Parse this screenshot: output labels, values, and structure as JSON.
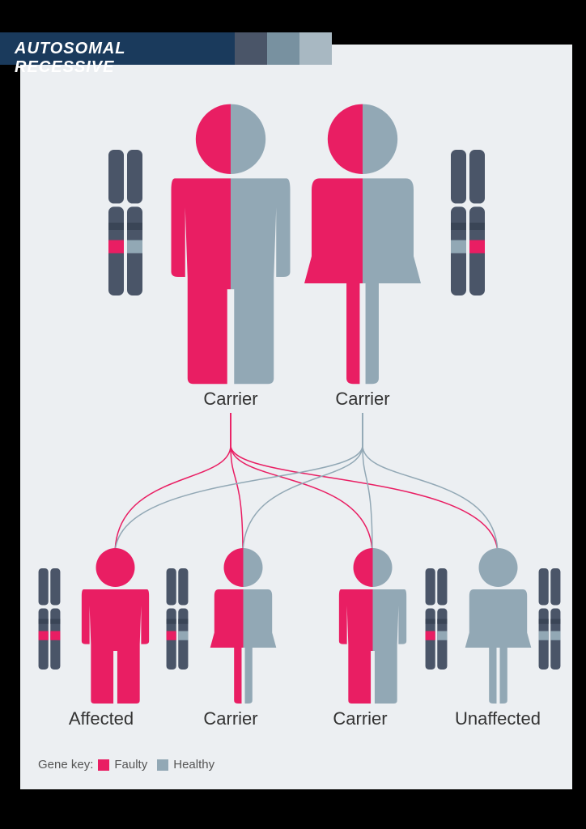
{
  "title": "AUTOSOMAL RECESSIVE",
  "colors": {
    "faulty": "#e91e63",
    "healthy": "#92a8b5",
    "chromosome": "#4a5568",
    "chromosome_band_dark": "#3a4556",
    "panel_bg": "#eceff2",
    "title_bg": "#1a3a5c",
    "block1": "#4a5568",
    "block2": "#7891a0",
    "block3": "#a8b8c2",
    "text": "#333333",
    "legend_text": "#555555"
  },
  "parents": [
    {
      "gender": "male",
      "left_color": "faulty",
      "right_color": "healthy",
      "label": "Carrier",
      "chromo_left_band": "faulty",
      "chromo_right_band": "healthy"
    },
    {
      "gender": "female",
      "left_color": "faulty",
      "right_color": "healthy",
      "label": "Carrier",
      "chromo_left_band": "healthy",
      "chromo_right_band": "faulty"
    }
  ],
  "children": [
    {
      "gender": "male",
      "left_color": "faulty",
      "right_color": "faulty",
      "label": "Affected",
      "chromo_left_band": "faulty",
      "chromo_right_band": "faulty"
    },
    {
      "gender": "female",
      "left_color": "faulty",
      "right_color": "healthy",
      "label": "Carrier",
      "chromo_left_band": "faulty",
      "chromo_right_band": "healthy"
    },
    {
      "gender": "male",
      "left_color": "faulty",
      "right_color": "healthy",
      "label": "Carrier",
      "chromo_left_band": "faulty",
      "chromo_right_band": "healthy"
    },
    {
      "gender": "female",
      "left_color": "healthy",
      "right_color": "healthy",
      "label": "Unaffected",
      "chromo_left_band": "healthy",
      "chromo_right_band": "healthy"
    }
  ],
  "legend": {
    "prefix": "Gene key:",
    "items": [
      {
        "label": "Faulty",
        "color": "faulty"
      },
      {
        "label": "Healthy",
        "color": "healthy"
      }
    ]
  }
}
